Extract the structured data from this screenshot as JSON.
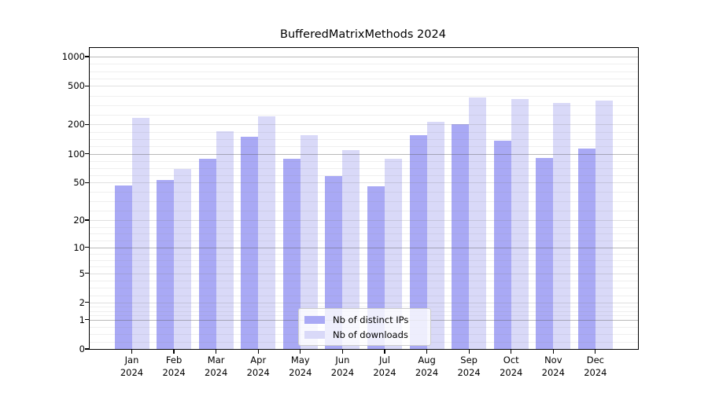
{
  "chart_data": {
    "type": "bar",
    "title": "BufferedMatrixMethods 2024",
    "categories": [
      "Jan",
      "Feb",
      "Mar",
      "Apr",
      "May",
      "Jun",
      "Jul",
      "Aug",
      "Sep",
      "Oct",
      "Nov",
      "Dec"
    ],
    "year": "2024",
    "series": [
      {
        "name": "Nb of distinct IPs",
        "color": "#a9a9f5",
        "values": [
          47,
          53,
          88,
          149,
          89,
          59,
          46,
          156,
          203,
          136,
          91,
          114
        ]
      },
      {
        "name": "Nb of downloads",
        "color": "#d9d9f8",
        "values": [
          236,
          69,
          171,
          242,
          155,
          109,
          89,
          215,
          382,
          369,
          334,
          356
        ]
      }
    ],
    "y_axis": {
      "scale": "log1p",
      "ticks": [
        0,
        1,
        2,
        5,
        10,
        20,
        50,
        100,
        200,
        500,
        1000
      ],
      "major_gridlines": [
        1,
        10,
        100,
        1000
      ],
      "axis_max": 1228
    },
    "x_axis": {
      "label_year": "2024"
    },
    "legend": {
      "position": "bottom-center",
      "entries": [
        "Nb of distinct IPs",
        "Nb of downloads"
      ]
    },
    "grid": true
  }
}
